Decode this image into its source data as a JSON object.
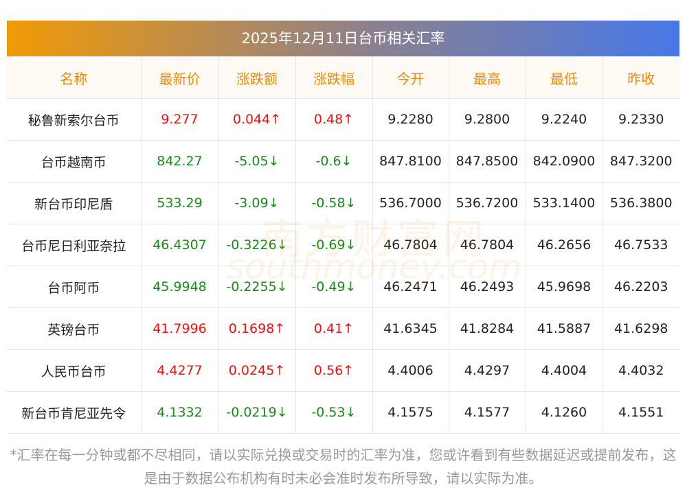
{
  "title": "2025年12月11日台币相关汇率",
  "watermark": {
    "cn": "南方财富网",
    "en": "southmoney.com"
  },
  "headers": [
    "名称",
    "最新价",
    "涨跌额",
    "涨跌幅",
    "今开",
    "最高",
    "最低",
    "昨收"
  ],
  "rows": [
    {
      "trend": "up",
      "cells": [
        "秘鲁新索尔台币",
        "9.277",
        "0.044↑",
        "0.48↑",
        "9.2280",
        "9.2800",
        "9.2240",
        "9.2330"
      ]
    },
    {
      "trend": "down",
      "cells": [
        "台币越南币",
        "842.27",
        "-5.05↓",
        "-0.6↓",
        "847.8100",
        "847.8500",
        "842.0900",
        "847.3200"
      ]
    },
    {
      "trend": "down",
      "cells": [
        "新台币印尼盾",
        "533.29",
        "-3.09↓",
        "-0.58↓",
        "536.7000",
        "536.7200",
        "533.1400",
        "536.3800"
      ]
    },
    {
      "trend": "down",
      "cells": [
        "台币尼日利亚奈拉",
        "46.4307",
        "-0.3226↓",
        "-0.69↓",
        "46.7804",
        "46.7804",
        "46.2656",
        "46.7533"
      ]
    },
    {
      "trend": "down",
      "cells": [
        "台币阿币",
        "45.9948",
        "-0.2255↓",
        "-0.49↓",
        "46.2471",
        "46.2493",
        "45.9698",
        "46.2203"
      ]
    },
    {
      "trend": "up",
      "cells": [
        "英镑台币",
        "41.7996",
        "0.1698↑",
        "0.41↑",
        "41.6345",
        "41.8284",
        "41.5887",
        "41.6298"
      ]
    },
    {
      "trend": "up",
      "cells": [
        "人民币台币",
        "4.4277",
        "0.0245↑",
        "0.56↑",
        "4.4006",
        "4.4297",
        "4.4004",
        "4.4032"
      ]
    },
    {
      "trend": "down",
      "cells": [
        "新台币肯尼亚先令",
        "4.1332",
        "-0.0219↓",
        "-0.53↓",
        "4.1575",
        "4.1577",
        "4.1260",
        "4.1551"
      ]
    }
  ],
  "note": "*汇率在每一分钟或都不尽相同，请以实际兑换或交易时的汇率为准，您或许看到有些数据延迟或提前发布，这是由于数据公布机构有时未必会准时发布所导致，请以实际为准。",
  "colors": {
    "up": "#f01010",
    "down": "#1a8a1a",
    "header": "#f08a00"
  }
}
